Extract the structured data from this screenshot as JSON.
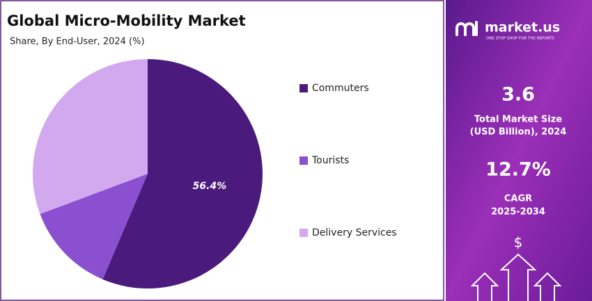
{
  "chart_data": {
    "type": "pie",
    "title": "Global Micro-Mobility Market",
    "subtitle": "Share, By End-User, 2024 (%)",
    "categories": [
      "Commuters",
      "Tourists",
      "Delivery Services"
    ],
    "values": [
      56.4,
      12.9,
      30.7
    ],
    "value_labels": [
      "56.4%",
      null,
      null
    ],
    "colors": [
      "#4b1a7d",
      "#8a50d0",
      "#d2a8ef"
    ],
    "legend": "right"
  },
  "brand": {
    "name": "market.us",
    "tagline": "ONE STOP SHOP FOR THE REPORTS"
  },
  "stats": [
    {
      "value": "3.6",
      "label": [
        "Total Market Size",
        "(USD Billion), 2024"
      ]
    },
    {
      "value": "12.7%",
      "label": [
        "CAGR",
        "2025-2034"
      ]
    }
  ]
}
